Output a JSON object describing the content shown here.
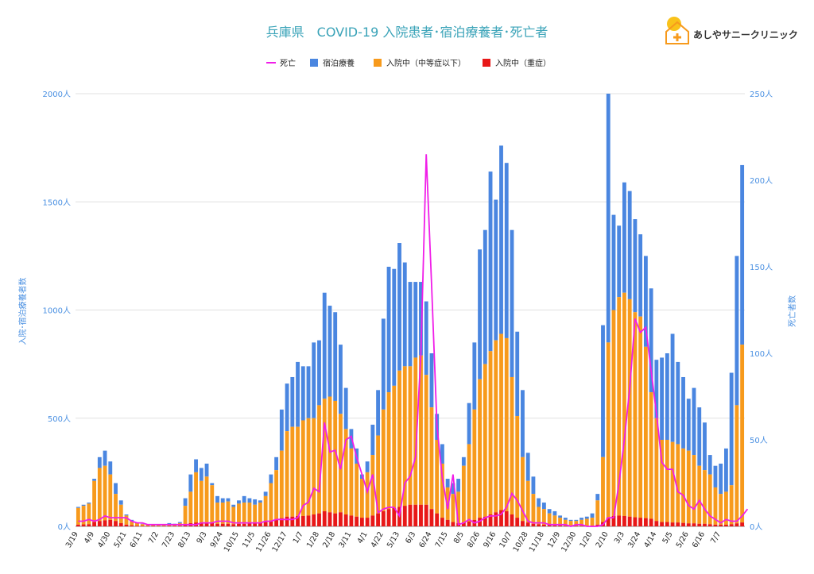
{
  "chart_data": {
    "type": "bar",
    "title": "兵庫県　COVID-19 入院患者･宿泊療養者･死亡者",
    "y_left_label": "入院･宿泊療養者数",
    "y_right_label": "死亡者数",
    "y_left_ticks": [
      "0人",
      "500人",
      "1000人",
      "1500人",
      "2000人"
    ],
    "y_right_ticks": [
      "0人",
      "50人",
      "100人",
      "150人",
      "200人",
      "250人"
    ],
    "ylim_left": [
      0,
      2000
    ],
    "ylim_right": [
      0,
      250
    ],
    "legend_position": "top",
    "grid": true,
    "colors": {
      "severe": "#e81818",
      "moderate": "#f79a1c",
      "hotel": "#4a86e0",
      "death": "#f01ee8"
    },
    "series_names": {
      "death": "死亡",
      "hotel": "宿泊療養",
      "moderate": "入院中（中等症以下）",
      "severe": "入院中（重症）"
    },
    "x_tick_labels": [
      "3/19",
      "4/9",
      "4/30",
      "5/21",
      "6/11",
      "7/2",
      "7/23",
      "8/13",
      "9/3",
      "9/24",
      "10/15",
      "11/5",
      "11/26",
      "12/17",
      "1/7",
      "1/28",
      "2/18",
      "3/11",
      "4/1",
      "4/22",
      "5/13",
      "6/3",
      "6/24",
      "7/15",
      "8/5",
      "8/26",
      "9/16",
      "10/7",
      "10/28",
      "11/18",
      "12/9",
      "12/30",
      "1/20",
      "2/10",
      "3/3",
      "3/24",
      "4/14",
      "5/5",
      "5/26",
      "6/16",
      "7/7"
    ],
    "totals": [
      90,
      100,
      110,
      220,
      320,
      350,
      300,
      200,
      120,
      55,
      30,
      18,
      12,
      10,
      10,
      8,
      8,
      15,
      12,
      20,
      130,
      240,
      310,
      270,
      290,
      200,
      140,
      130,
      130,
      100,
      120,
      140,
      130,
      125,
      120,
      160,
      240,
      320,
      540,
      660,
      690,
      760,
      740,
      740,
      850,
      860,
      1080,
      1020,
      990,
      840,
      640,
      450,
      360,
      240,
      300,
      470,
      630,
      960,
      1200,
      1190,
      1310,
      1220,
      1130,
      1130,
      1130,
      1040,
      800,
      520,
      380,
      220,
      200,
      220,
      320,
      570,
      850,
      1280,
      1370,
      1640,
      1510,
      1760,
      1680,
      1370,
      900,
      630,
      340,
      230,
      130,
      110,
      80,
      70,
      50,
      40,
      30,
      30,
      40,
      45,
      60,
      150,
      930,
      2000,
      1440,
      1390,
      1590,
      1550,
      1420,
      1350,
      1250,
      1100,
      770,
      780,
      800,
      890,
      760,
      690,
      590,
      640,
      550,
      480,
      330,
      280,
      290,
      360,
      710,
      1250,
      1670
    ],
    "moderate": [
      85,
      95,
      105,
      210,
      270,
      280,
      240,
      150,
      100,
      50,
      25,
      15,
      10,
      8,
      8,
      6,
      6,
      10,
      10,
      15,
      95,
      160,
      250,
      210,
      230,
      190,
      110,
      110,
      115,
      90,
      105,
      110,
      110,
      100,
      110,
      140,
      200,
      260,
      350,
      440,
      460,
      460,
      490,
      500,
      500,
      560,
      590,
      600,
      580,
      520,
      450,
      360,
      290,
      220,
      250,
      330,
      420,
      540,
      620,
      650,
      720,
      740,
      740,
      780,
      790,
      700,
      550,
      400,
      290,
      180,
      150,
      160,
      280,
      380,
      540,
      680,
      750,
      810,
      860,
      890,
      870,
      690,
      510,
      320,
      210,
      150,
      90,
      80,
      60,
      50,
      40,
      30,
      25,
      25,
      30,
      35,
      40,
      120,
      320,
      850,
      1000,
      1060,
      1080,
      1050,
      990,
      970,
      830,
      620,
      500,
      400,
      400,
      390,
      380,
      360,
      350,
      330,
      280,
      260,
      240,
      180,
      150,
      160,
      190,
      560,
      840
    ],
    "severe": [
      8,
      9,
      10,
      20,
      25,
      28,
      30,
      25,
      15,
      8,
      5,
      3,
      2,
      2,
      2,
      1,
      1,
      2,
      2,
      3,
      10,
      15,
      18,
      18,
      15,
      15,
      12,
      12,
      12,
      10,
      12,
      12,
      14,
      14,
      15,
      20,
      25,
      30,
      38,
      45,
      45,
      48,
      48,
      50,
      55,
      60,
      70,
      65,
      60,
      65,
      55,
      50,
      45,
      40,
      40,
      50,
      60,
      70,
      80,
      85,
      90,
      95,
      100,
      100,
      100,
      100,
      80,
      60,
      40,
      30,
      20,
      15,
      18,
      22,
      30,
      40,
      45,
      55,
      65,
      75,
      70,
      55,
      40,
      25,
      18,
      12,
      10,
      8,
      6,
      5,
      4,
      3,
      3,
      3,
      3,
      3,
      4,
      8,
      20,
      40,
      48,
      50,
      48,
      45,
      42,
      40,
      38,
      35,
      25,
      20,
      20,
      18,
      18,
      16,
      14,
      14,
      12,
      12,
      10,
      8,
      8,
      8,
      10,
      14,
      18
    ],
    "deaths": [
      3,
      3,
      4,
      3,
      4,
      6,
      5,
      5,
      5,
      5,
      3,
      2,
      2,
      1,
      1,
      1,
      1,
      1,
      1,
      1,
      1,
      1,
      1,
      2,
      2,
      2,
      3,
      3,
      3,
      2,
      2,
      2,
      2,
      2,
      2,
      3,
      3,
      4,
      4,
      4,
      4,
      5,
      12,
      14,
      22,
      20,
      60,
      43,
      44,
      33,
      50,
      52,
      40,
      30,
      20,
      30,
      8,
      10,
      11,
      11,
      6,
      25,
      29,
      40,
      100,
      215,
      140,
      58,
      28,
      10,
      30,
      1,
      2,
      4,
      2,
      3,
      5,
      6,
      6,
      7,
      11,
      19,
      15,
      9,
      3,
      2,
      2,
      2,
      1,
      1,
      1,
      1,
      0,
      1,
      1,
      0,
      0,
      0,
      1,
      5,
      5,
      25,
      50,
      80,
      120,
      112,
      115,
      90,
      65,
      37,
      33,
      33,
      20,
      18,
      12,
      10,
      15,
      10,
      6,
      4,
      2,
      4,
      3,
      3,
      6,
      10
    ]
  },
  "legend": [
    {
      "key": "death",
      "label": "死亡"
    },
    {
      "key": "hotel",
      "label": "宿泊療養"
    },
    {
      "key": "moderate",
      "label": "入院中（中等症以下）"
    },
    {
      "key": "severe",
      "label": "入院中（重症）"
    }
  ],
  "brand": {
    "name": "あしやサニークリニック"
  }
}
